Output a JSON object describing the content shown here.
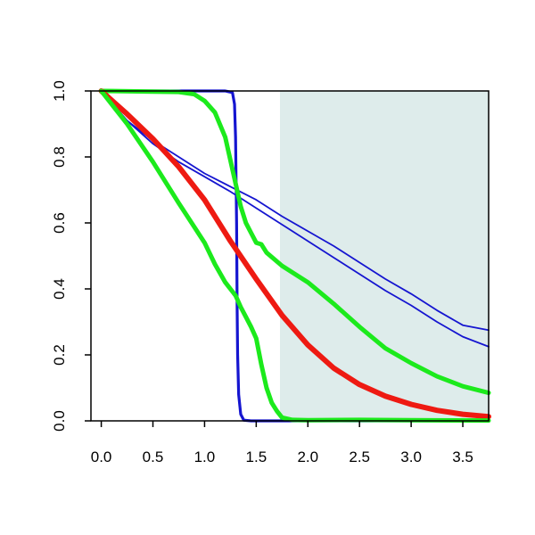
{
  "chart_data": {
    "type": "line",
    "title": "",
    "xlabel": "",
    "ylabel": "",
    "xlim": [
      -0.1,
      3.75
    ],
    "ylim": [
      0,
      1
    ],
    "grid": false,
    "x_ticks": [
      "0.0",
      "0.5",
      "1.0",
      "1.5",
      "2.0",
      "2.5",
      "3.0",
      "3.5"
    ],
    "y_ticks": [
      "0.0",
      "0.2",
      "0.4",
      "0.6",
      "0.8",
      "1.0"
    ],
    "shaded_region": {
      "x_from": 1.73,
      "x_to": 3.75,
      "color": "#deeceb"
    },
    "series": [
      {
        "color": "#1515d0",
        "width": 1.8,
        "points": [
          [
            0,
            1
          ],
          [
            0.25,
            0.91
          ],
          [
            0.5,
            0.85
          ],
          [
            0.75,
            0.8
          ],
          [
            1.0,
            0.75
          ],
          [
            1.25,
            0.71
          ],
          [
            1.5,
            0.67
          ],
          [
            1.75,
            0.62
          ],
          [
            2.0,
            0.575
          ],
          [
            2.25,
            0.53
          ],
          [
            2.5,
            0.48
          ],
          [
            2.75,
            0.43
          ],
          [
            3.0,
            0.385
          ],
          [
            3.25,
            0.335
          ],
          [
            3.5,
            0.29
          ],
          [
            3.75,
            0.275
          ]
        ]
      },
      {
        "color": "#1515d0",
        "width": 1.8,
        "points": [
          [
            0,
            1
          ],
          [
            0.25,
            0.91
          ],
          [
            0.5,
            0.84
          ],
          [
            0.75,
            0.785
          ],
          [
            1.0,
            0.74
          ],
          [
            1.25,
            0.695
          ],
          [
            1.5,
            0.645
          ],
          [
            1.75,
            0.595
          ],
          [
            2.0,
            0.545
          ],
          [
            2.25,
            0.495
          ],
          [
            2.5,
            0.445
          ],
          [
            2.75,
            0.395
          ],
          [
            3.0,
            0.35
          ],
          [
            3.25,
            0.3
          ],
          [
            3.5,
            0.255
          ],
          [
            3.75,
            0.225
          ]
        ]
      },
      {
        "color": "#1515d0",
        "width": 3.2,
        "points": [
          [
            0,
            1
          ],
          [
            1.2,
            1
          ],
          [
            1.27,
            0.995
          ],
          [
            1.29,
            0.96
          ],
          [
            1.3,
            0.86
          ],
          [
            1.31,
            0.6
          ],
          [
            1.315,
            0.35
          ],
          [
            1.32,
            0.2
          ],
          [
            1.33,
            0.08
          ],
          [
            1.35,
            0.02
          ],
          [
            1.38,
            0.002
          ],
          [
            1.45,
            0
          ],
          [
            3.75,
            0
          ]
        ]
      },
      {
        "color": "#1cea1c",
        "width": 5,
        "points": [
          [
            0,
            1
          ],
          [
            0.5,
            0.998
          ],
          [
            0.75,
            0.997
          ],
          [
            0.9,
            0.99
          ],
          [
            1.0,
            0.97
          ],
          [
            1.1,
            0.935
          ],
          [
            1.2,
            0.86
          ],
          [
            1.25,
            0.79
          ],
          [
            1.3,
            0.72
          ],
          [
            1.35,
            0.65
          ],
          [
            1.4,
            0.6
          ],
          [
            1.45,
            0.57
          ],
          [
            1.5,
            0.54
          ],
          [
            1.55,
            0.535
          ],
          [
            1.6,
            0.51
          ],
          [
            1.75,
            0.47
          ],
          [
            2.0,
            0.42
          ],
          [
            2.25,
            0.355
          ],
          [
            2.5,
            0.285
          ],
          [
            2.75,
            0.22
          ],
          [
            3.0,
            0.175
          ],
          [
            3.25,
            0.135
          ],
          [
            3.5,
            0.105
          ],
          [
            3.75,
            0.085
          ]
        ]
      },
      {
        "color": "#ee1a12",
        "width": 6,
        "points": [
          [
            0,
            1
          ],
          [
            0.25,
            0.93
          ],
          [
            0.5,
            0.855
          ],
          [
            0.75,
            0.77
          ],
          [
            1.0,
            0.67
          ],
          [
            1.25,
            0.545
          ],
          [
            1.5,
            0.43
          ],
          [
            1.75,
            0.32
          ],
          [
            2.0,
            0.23
          ],
          [
            2.25,
            0.16
          ],
          [
            2.5,
            0.11
          ],
          [
            2.75,
            0.075
          ],
          [
            3.0,
            0.05
          ],
          [
            3.25,
            0.032
          ],
          [
            3.5,
            0.02
          ],
          [
            3.75,
            0.013
          ]
        ]
      },
      {
        "color": "#1cea1c",
        "width": 5,
        "points": [
          [
            0,
            1
          ],
          [
            0.25,
            0.9
          ],
          [
            0.5,
            0.785
          ],
          [
            0.75,
            0.66
          ],
          [
            1.0,
            0.54
          ],
          [
            1.1,
            0.475
          ],
          [
            1.2,
            0.42
          ],
          [
            1.25,
            0.4
          ],
          [
            1.3,
            0.38
          ],
          [
            1.35,
            0.345
          ],
          [
            1.4,
            0.315
          ],
          [
            1.45,
            0.285
          ],
          [
            1.5,
            0.25
          ],
          [
            1.55,
            0.17
          ],
          [
            1.6,
            0.1
          ],
          [
            1.65,
            0.055
          ],
          [
            1.7,
            0.03
          ],
          [
            1.75,
            0.01
          ],
          [
            1.85,
            0.003
          ],
          [
            2.0,
            0.002
          ],
          [
            2.5,
            0.003
          ],
          [
            3.0,
            0.002
          ],
          [
            3.75,
            0.001
          ]
        ]
      }
    ]
  }
}
